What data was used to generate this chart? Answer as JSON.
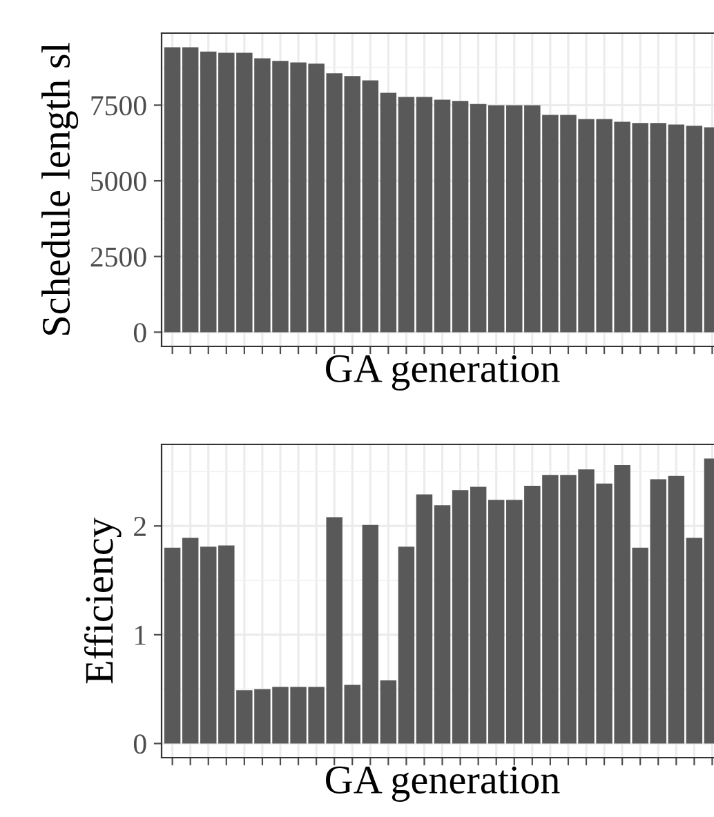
{
  "chart_data": [
    {
      "type": "bar",
      "ylabel": "Schedule length sl",
      "xlabel": "GA generation",
      "color": "#595959",
      "grid": true,
      "tick_labels": "y",
      "categories": [
        null,
        null,
        null,
        null,
        null,
        null,
        null,
        null,
        null,
        null,
        null,
        null,
        null,
        null,
        null,
        null,
        null,
        null,
        null,
        null,
        null,
        null,
        null,
        null,
        null,
        null,
        null,
        null,
        null,
        null,
        null
      ],
      "values": [
        9410,
        9410,
        9270,
        9230,
        9230,
        9050,
        8960,
        8910,
        8870,
        8550,
        8460,
        8320,
        7910,
        7770,
        7770,
        7680,
        7640,
        7540,
        7500,
        7500,
        7500,
        7180,
        7180,
        7040,
        7040,
        6950,
        6910,
        6910,
        6860,
        6820,
        6770
      ],
      "ylim": [
        -470,
        9880
      ],
      "yticks": [
        0,
        2500,
        5000,
        7500
      ]
    },
    {
      "type": "bar",
      "ylabel": "Efficiency",
      "xlabel": "GA generation",
      "color": "#595959",
      "grid": true,
      "tick_labels": "y",
      "categories": [
        null,
        null,
        null,
        null,
        null,
        null,
        null,
        null,
        null,
        null,
        null,
        null,
        null,
        null,
        null,
        null,
        null,
        null,
        null,
        null,
        null,
        null,
        null,
        null,
        null,
        null,
        null,
        null,
        null,
        null,
        null
      ],
      "values": [
        1.8,
        1.89,
        1.81,
        1.82,
        0.49,
        0.5,
        0.52,
        0.52,
        0.52,
        2.08,
        0.54,
        2.01,
        0.58,
        1.81,
        2.29,
        2.19,
        2.33,
        2.36,
        2.24,
        2.24,
        2.37,
        2.47,
        2.47,
        2.52,
        2.39,
        2.56,
        1.8,
        2.43,
        2.46,
        1.89,
        2.62
      ],
      "ylim": [
        -0.13,
        2.75
      ],
      "yticks": [
        0,
        1,
        2
      ]
    }
  ]
}
